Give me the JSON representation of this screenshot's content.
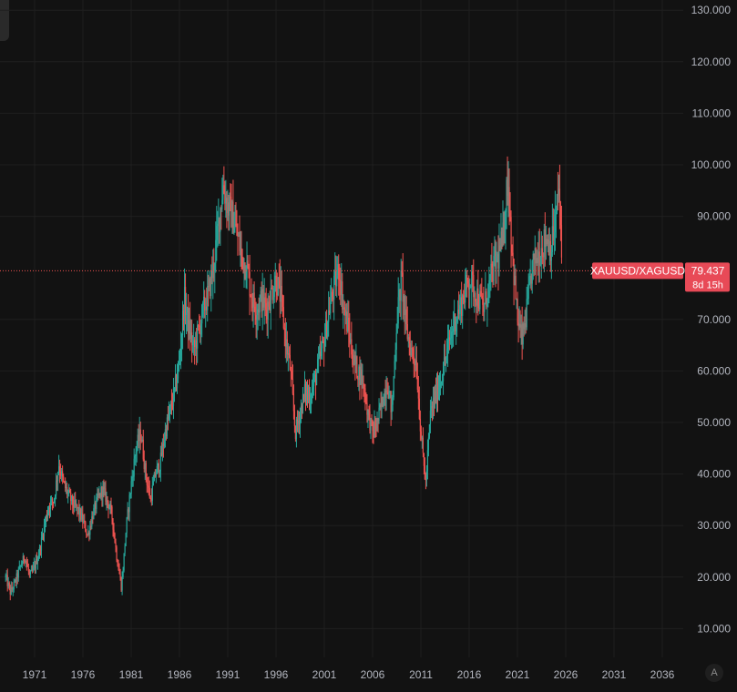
{
  "chart_data": {
    "type": "candlestick",
    "symbol": "XAUUSD/XAGUSD",
    "last_price": "79.437",
    "countdown": "8d 15h",
    "ylim": [
      0,
      130
    ],
    "xlim": [
      1967.8,
      2040.0
    ],
    "y_ticks": [
      "130.000",
      "120.000",
      "110.000",
      "100.000",
      "90.000",
      "70.000",
      "60.000",
      "50.000",
      "40.000",
      "30.000",
      "20.000",
      "10.000"
    ],
    "y_tick_values": [
      130,
      120,
      110,
      100,
      90,
      70,
      60,
      50,
      40,
      30,
      20,
      10
    ],
    "x_ticks": [
      "1971",
      "1976",
      "1981",
      "1986",
      "1991",
      "1996",
      "2001",
      "2006",
      "2011",
      "2016",
      "2021",
      "2026",
      "2031",
      "2036"
    ],
    "x_tick_values": [
      1971,
      1976,
      1981,
      1986,
      1991,
      1996,
      2001,
      2006,
      2011,
      2016,
      2021,
      2026,
      2031,
      2036
    ],
    "series_x": [
      1968.0,
      1968.5,
      1969.0,
      1969.5,
      1970.0,
      1970.5,
      1971.0,
      1971.5,
      1972.0,
      1972.5,
      1973.0,
      1973.5,
      1974.0,
      1974.5,
      1975.0,
      1975.5,
      1976.0,
      1976.5,
      1977.0,
      1977.5,
      1978.0,
      1978.5,
      1979.0,
      1979.5,
      1980.0,
      1980.5,
      1981.0,
      1981.5,
      1982.0,
      1982.5,
      1983.0,
      1983.5,
      1984.0,
      1984.5,
      1985.0,
      1985.5,
      1986.0,
      1986.5,
      1987.0,
      1987.5,
      1988.0,
      1988.5,
      1989.0,
      1989.5,
      1990.0,
      1990.5,
      1991.0,
      1991.5,
      1992.0,
      1992.5,
      1993.0,
      1993.5,
      1994.0,
      1994.5,
      1995.0,
      1995.5,
      1996.0,
      1996.5,
      1997.0,
      1997.5,
      1998.0,
      1998.5,
      1999.0,
      1999.5,
      2000.0,
      2000.5,
      2001.0,
      2001.5,
      2002.0,
      2002.5,
      2003.0,
      2003.5,
      2004.0,
      2004.5,
      2005.0,
      2005.5,
      2006.0,
      2006.5,
      2007.0,
      2007.5,
      2008.0,
      2008.5,
      2009.0,
      2009.5,
      2010.0,
      2010.5,
      2011.0,
      2011.5,
      2012.0,
      2012.5,
      2013.0,
      2013.5,
      2014.0,
      2014.5,
      2015.0,
      2015.5,
      2016.0,
      2016.5,
      2017.0,
      2017.5,
      2018.0,
      2018.5,
      2019.0,
      2019.5,
      2020.0,
      2020.5,
      2021.0,
      2021.5,
      2022.0,
      2022.5,
      2023.0,
      2023.5,
      2024.0,
      2024.5,
      2025.0,
      2025.3,
      2025.6
    ],
    "series_y": [
      20,
      17,
      19,
      22,
      24,
      20,
      22,
      25,
      30,
      34,
      35,
      42,
      38,
      36,
      34,
      33,
      31,
      28,
      32,
      35,
      37,
      35,
      32,
      24,
      18,
      30,
      38,
      45,
      48,
      40,
      35,
      40,
      42,
      48,
      52,
      56,
      62,
      74,
      68,
      64,
      68,
      72,
      75,
      80,
      88,
      96,
      92,
      90,
      86,
      82,
      80,
      74,
      72,
      74,
      72,
      75,
      78,
      74,
      66,
      60,
      48,
      52,
      56,
      55,
      58,
      62,
      66,
      72,
      76,
      80,
      72,
      68,
      62,
      60,
      58,
      52,
      48,
      50,
      54,
      58,
      52,
      70,
      78,
      68,
      64,
      62,
      48,
      38,
      52,
      55,
      58,
      62,
      66,
      70,
      72,
      75,
      78,
      76,
      74,
      72,
      76,
      80,
      82,
      86,
      98,
      82,
      70,
      66,
      72,
      80,
      82,
      84,
      86,
      84,
      90,
      96,
      79.437
    ],
    "colors": {
      "up": "#26a69a",
      "down": "#ef5350",
      "background": "#121212",
      "grid": "#1f1f1f",
      "axis_text": "#b2b5be",
      "price_line": "#ef5350",
      "label_bg": "#e84a57",
      "label_text": "#ffffff"
    }
  }
}
